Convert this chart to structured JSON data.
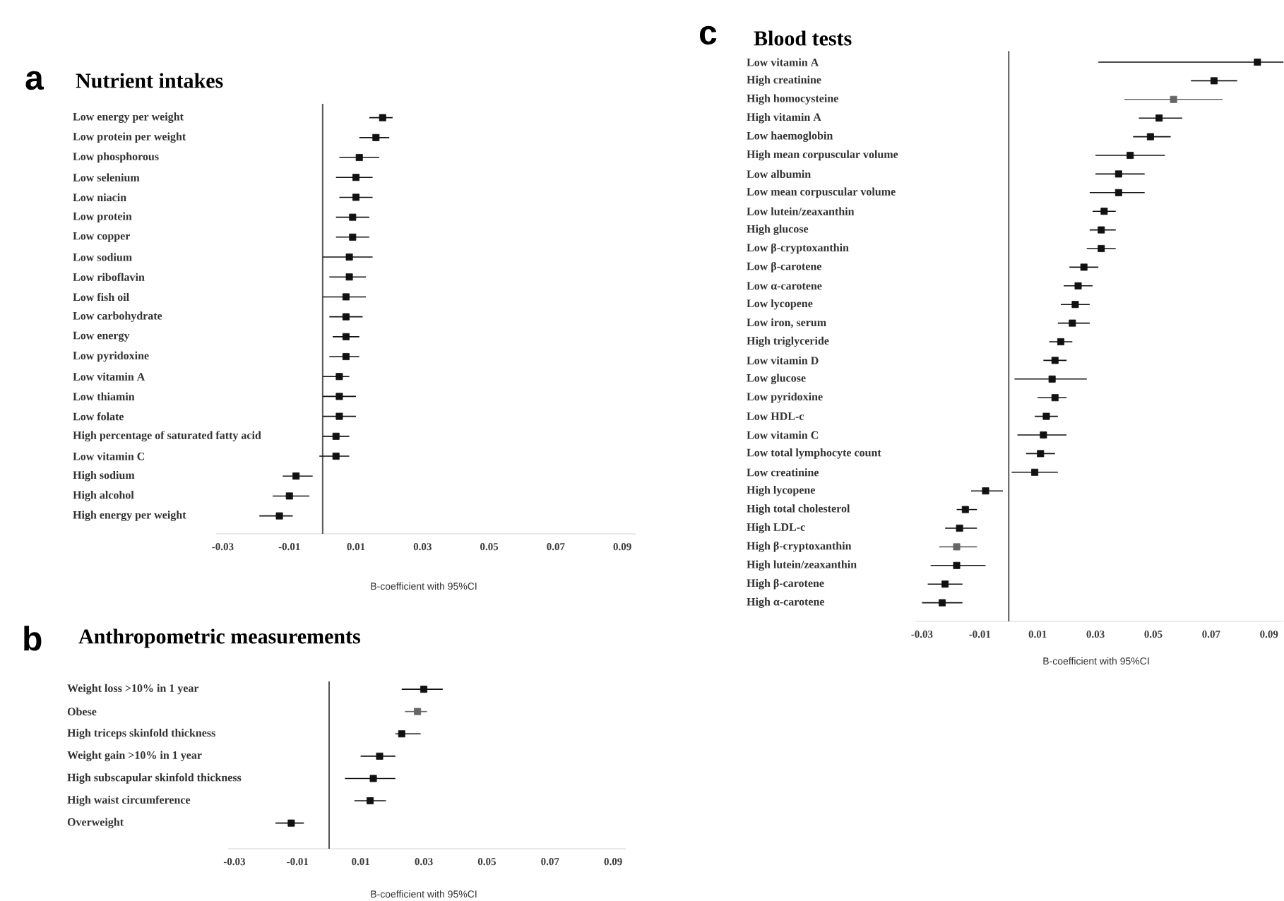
{
  "chart_data": [
    {
      "type": "scatter",
      "orientation": "horizontal",
      "title": "Nutrient intakes",
      "annotations": [
        "a"
      ],
      "xlabel": "B-coefficient with 95%CI",
      "marker": "square",
      "categories": [
        "Low energy per weight",
        "Low protein per weight",
        "Low phosphorous",
        "Low selenium",
        "Low niacin",
        "Low protein",
        "Low copper",
        "Low sodium",
        "Low riboflavin",
        "Low fish oil",
        "Low carbohydrate",
        "Low energy",
        "Low pyridoxine",
        "Low vitamin A",
        "Low thiamin",
        "Low folate",
        "High percentage of saturated fatty acid",
        "Low vitamin C",
        "High sodium",
        "High alcohol",
        "High energy per weight"
      ],
      "values": [
        0.018,
        0.016,
        0.011,
        0.01,
        0.01,
        0.009,
        0.009,
        0.008,
        0.008,
        0.007,
        0.007,
        0.007,
        0.007,
        0.005,
        0.005,
        0.005,
        0.004,
        0.004,
        -0.008,
        -0.01,
        -0.013
      ],
      "errors": [
        [
          0.014,
          0.021
        ],
        [
          0.011,
          0.02
        ],
        [
          0.005,
          0.017
        ],
        [
          0.004,
          0.015
        ],
        [
          0.005,
          0.015
        ],
        [
          0.004,
          0.014
        ],
        [
          0.004,
          0.014
        ],
        [
          0.0,
          0.015
        ],
        [
          0.002,
          0.013
        ],
        [
          0.0,
          0.013
        ],
        [
          0.002,
          0.012
        ],
        [
          0.003,
          0.011
        ],
        [
          0.002,
          0.011
        ],
        [
          0.0,
          0.008
        ],
        [
          0.0,
          0.01
        ],
        [
          0.0,
          0.01
        ],
        [
          0.0,
          0.008
        ],
        [
          -0.001,
          0.008
        ],
        [
          -0.012,
          -0.003
        ],
        [
          -0.015,
          -0.004
        ],
        [
          -0.019,
          -0.009
        ]
      ],
      "colors": [
        "#111111",
        "#111111",
        "#111111",
        "#111111",
        "#111111",
        "#111111",
        "#111111",
        "#111111",
        "#111111",
        "#111111",
        "#111111",
        "#111111",
        "#111111",
        "#111111",
        "#111111",
        "#111111",
        "#111111",
        "#111111",
        "#111111",
        "#111111",
        "#111111"
      ],
      "xlim": [
        -0.032,
        0.094
      ],
      "xticks": [
        -0.03,
        -0.01,
        0.01,
        0.03,
        0.05,
        0.07,
        0.09
      ],
      "ref_lines": [
        {
          "axis": "x",
          "value": 0,
          "color": "#555555"
        }
      ]
    },
    {
      "type": "scatter",
      "orientation": "horizontal",
      "title": "Anthropometric measurements",
      "annotations": [
        "b"
      ],
      "xlabel": "B-coefficient with 95%CI",
      "marker": "square",
      "categories": [
        "Weight loss >10% in 1 year",
        "Obese",
        "High triceps skinfold thickness",
        "Weight gain >10% in 1 year",
        "High subscapular skinfold thickness",
        "High waist circumference",
        "Overweight"
      ],
      "values": [
        0.03,
        0.028,
        0.023,
        0.016,
        0.014,
        0.013,
        -0.012
      ],
      "errors": [
        [
          0.023,
          0.036
        ],
        [
          0.024,
          0.031
        ],
        [
          0.021,
          0.029
        ],
        [
          0.01,
          0.021
        ],
        [
          0.005,
          0.021
        ],
        [
          0.008,
          0.018
        ],
        [
          -0.017,
          -0.008
        ]
      ],
      "colors": [
        "#111111",
        "#666666",
        "#111111",
        "#111111",
        "#111111",
        "#111111",
        "#111111"
      ],
      "xlim": [
        -0.032,
        0.094
      ],
      "xticks": [
        -0.03,
        -0.01,
        0.01,
        0.03,
        0.05,
        0.07,
        0.09
      ],
      "ref_lines": [
        {
          "axis": "x",
          "value": 0,
          "color": "#555555"
        }
      ]
    },
    {
      "type": "scatter",
      "orientation": "horizontal",
      "title": "Blood tests",
      "annotations": [
        "c"
      ],
      "xlabel": "B-coefficient with 95%CI",
      "marker": "square",
      "categories": [
        "Low vitamin A",
        "High creatinine",
        "High homocysteine",
        "High vitamin A",
        "Low haemoglobin",
        "High mean corpuscular volume",
        "Low albumin",
        "Low mean corpuscular volume",
        "Low lutein/zeaxanthin",
        "High glucose",
        "Low β-cryptoxanthin",
        "Low β-carotene",
        "Low α-carotene",
        "Low lycopene",
        "Low iron, serum",
        "High triglyceride",
        "Low vitamin D",
        "Low glucose",
        "Low pyridoxine",
        "Low HDL-c",
        "Low vitamin C",
        "Low total lymphocyte count",
        "Low creatinine",
        "High lycopene",
        "High total cholesterol",
        "High LDL-c",
        "High β-cryptoxanthin",
        "High lutein/zeaxanthin",
        "High β-carotene",
        "High α-carotene"
      ],
      "values": [
        0.086,
        0.071,
        0.057,
        0.052,
        0.049,
        0.042,
        0.038,
        0.038,
        0.033,
        0.032,
        0.032,
        0.026,
        0.024,
        0.023,
        0.022,
        0.018,
        0.016,
        0.015,
        0.016,
        0.013,
        0.012,
        0.011,
        0.009,
        -0.008,
        -0.015,
        -0.017,
        -0.018,
        -0.018,
        -0.022,
        -0.023
      ],
      "errors": [
        [
          0.031,
          0.095
        ],
        [
          0.063,
          0.079
        ],
        [
          0.04,
          0.074
        ],
        [
          0.045,
          0.06
        ],
        [
          0.043,
          0.056
        ],
        [
          0.03,
          0.054
        ],
        [
          0.03,
          0.047
        ],
        [
          0.028,
          0.047
        ],
        [
          0.029,
          0.037
        ],
        [
          0.028,
          0.037
        ],
        [
          0.027,
          0.037
        ],
        [
          0.021,
          0.031
        ],
        [
          0.019,
          0.029
        ],
        [
          0.018,
          0.028
        ],
        [
          0.017,
          0.028
        ],
        [
          0.014,
          0.022
        ],
        [
          0.012,
          0.02
        ],
        [
          0.002,
          0.027
        ],
        [
          0.01,
          0.02
        ],
        [
          0.009,
          0.017
        ],
        [
          0.003,
          0.02
        ],
        [
          0.006,
          0.016
        ],
        [
          0.001,
          0.017
        ],
        [
          -0.013,
          -0.002
        ],
        [
          -0.018,
          -0.011
        ],
        [
          -0.022,
          -0.011
        ],
        [
          -0.024,
          -0.011
        ],
        [
          -0.027,
          -0.008
        ],
        [
          -0.028,
          -0.016
        ],
        [
          -0.03,
          -0.016
        ]
      ],
      "colors": [
        "#111111",
        "#111111",
        "#666666",
        "#111111",
        "#111111",
        "#111111",
        "#111111",
        "#111111",
        "#111111",
        "#111111",
        "#111111",
        "#111111",
        "#111111",
        "#111111",
        "#111111",
        "#111111",
        "#111111",
        "#111111",
        "#111111",
        "#111111",
        "#111111",
        "#111111",
        "#111111",
        "#111111",
        "#111111",
        "#111111",
        "#666666",
        "#111111",
        "#111111",
        "#111111"
      ],
      "xlim": [
        -0.032,
        0.095
      ],
      "xticks": [
        -0.03,
        -0.01,
        0.01,
        0.03,
        0.05,
        0.07,
        0.09
      ],
      "ref_lines": [
        {
          "axis": "x",
          "value": 0,
          "color": "#555555"
        }
      ]
    }
  ]
}
